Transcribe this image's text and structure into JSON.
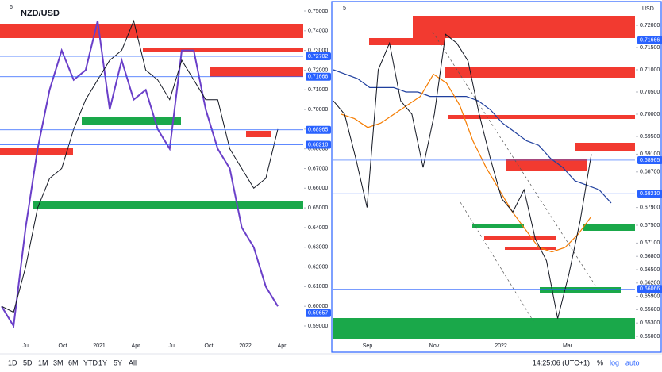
{
  "header": {
    "symbol": "NZD/USD"
  },
  "left_panel": {
    "index": "6",
    "ylim": [
      0.59,
      0.75
    ],
    "yticks": [
      {
        "value": 0.75,
        "label": "0.75000"
      },
      {
        "value": 0.74,
        "label": "0.74000"
      },
      {
        "value": 0.73,
        "label": "0.73000"
      },
      {
        "value": 0.72,
        "label": "0.72000"
      },
      {
        "value": 0.71,
        "label": "0.71000"
      },
      {
        "value": 0.7,
        "label": "0.70000"
      },
      {
        "value": 0.69,
        "label": "0.69000"
      },
      {
        "value": 0.68,
        "label": "0.68000"
      },
      {
        "value": 0.67,
        "label": "0.67000"
      },
      {
        "value": 0.66,
        "label": "0.66000"
      },
      {
        "value": 0.65,
        "label": "0.65000"
      },
      {
        "value": 0.64,
        "label": "0.64000"
      },
      {
        "value": 0.63,
        "label": "0.63000"
      },
      {
        "value": 0.62,
        "label": "0.62000"
      },
      {
        "value": 0.61,
        "label": "0.61000"
      },
      {
        "value": 0.6,
        "label": "0.60000"
      },
      {
        "value": 0.59,
        "label": "0.59000"
      }
    ],
    "price_tags": [
      0.72702,
      0.71666,
      0.68965,
      {
        "value": 0.6821,
        "label": "0.68210"
      },
      0.59657
    ],
    "xticks": [
      "Jul",
      "Oct",
      "2021",
      "Apr",
      "Jul",
      "Oct",
      "2022",
      "Apr"
    ],
    "price": [
      0.6,
      0.597,
      0.62,
      0.65,
      0.665,
      0.67,
      0.69,
      0.705,
      0.715,
      0.725,
      0.73,
      0.745,
      0.72,
      0.715,
      0.705,
      0.725,
      0.715,
      0.705,
      0.705,
      0.68,
      0.67,
      0.66,
      0.665,
      0.69
    ],
    "overlay": [
      0.6,
      0.59,
      0.64,
      0.68,
      0.71,
      0.73,
      0.715,
      0.72,
      0.745,
      0.7,
      0.725,
      0.705,
      0.71,
      0.69,
      0.68,
      0.73,
      0.73,
      0.7,
      0.68,
      0.67,
      0.64,
      0.63,
      0.61,
      0.6
    ]
  },
  "right_panel": {
    "index": "5",
    "currency": "USD",
    "ylim": [
      0.65,
      0.72
    ],
    "yticks": [
      {
        "value": 0.72,
        "label": "0.72000"
      },
      {
        "value": 0.715,
        "label": "0.71500"
      },
      {
        "value": 0.71,
        "label": "0.71000"
      },
      {
        "value": 0.705,
        "label": "0.70500"
      },
      {
        "value": 0.7,
        "label": "0.70000"
      },
      {
        "value": 0.695,
        "label": "0.69500"
      },
      {
        "value": 0.691,
        "label": "0.69100"
      },
      {
        "value": 0.687,
        "label": "0.68700"
      },
      {
        "value": 0.679,
        "label": "0.67900"
      },
      {
        "value": 0.675,
        "label": "0.67500"
      },
      {
        "value": 0.671,
        "label": "0.67100"
      },
      {
        "value": 0.668,
        "label": "0.66800"
      },
      {
        "value": 0.665,
        "label": "0.66500"
      },
      {
        "value": 0.662,
        "label": "0.66200"
      },
      {
        "value": 0.659,
        "label": "0.65900"
      },
      {
        "value": 0.656,
        "label": "0.65600"
      },
      {
        "value": 0.653,
        "label": "0.65300"
      },
      {
        "value": 0.65,
        "label": "0.65000"
      }
    ],
    "price_tags": [
      0.71666,
      0.68965,
      {
        "value": 0.6821,
        "label": "0.68210"
      },
      0.66066
    ],
    "xticks": [
      "Sep",
      "Nov",
      "2022",
      "Mar"
    ],
    "price": [
      0.703,
      0.7,
      0.69,
      0.679,
      0.71,
      0.716,
      0.703,
      0.7,
      0.688,
      0.7,
      0.718,
      0.716,
      0.712,
      0.7,
      0.69,
      0.681,
      0.678,
      0.683,
      0.672,
      0.667,
      0.654,
      0.664,
      0.676,
      0.691
    ],
    "ma_blue": [
      0.71,
      0.709,
      0.708,
      0.706,
      0.706,
      0.706,
      0.705,
      0.705,
      0.704,
      0.704,
      0.704,
      0.704,
      0.703,
      0.701,
      0.698,
      0.696,
      0.694,
      0.693,
      0.69,
      0.688,
      0.685,
      0.684,
      0.683,
      0.68
    ],
    "ma_orange": [
      0.7,
      0.699,
      0.697,
      0.698,
      0.7,
      0.702,
      0.704,
      0.709,
      0.707,
      0.702,
      0.694,
      0.688,
      0.683,
      0.678,
      0.674,
      0.67,
      0.669,
      0.67,
      0.673,
      0.677
    ]
  },
  "toolbar": {
    "ranges": [
      "1D",
      "5D",
      "1M",
      "3M",
      "6M",
      "YTD",
      "1Y",
      "5Y",
      "All"
    ],
    "clock": "14:25:06 (UTC+1)",
    "options": [
      "%",
      "log",
      "auto"
    ]
  }
}
